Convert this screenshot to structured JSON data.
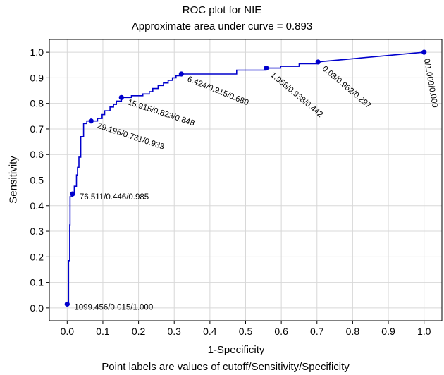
{
  "chart_data": {
    "type": "line",
    "title": "ROC plot for NIE",
    "subtitle": "Approximate area under curve = 0.893",
    "xlabel": "1-Specificity",
    "ylabel": "Sensitivity",
    "footnote": "Point labels are values of cutoff/Sensitivity/Specificity",
    "xlim": [
      -0.05,
      1.05
    ],
    "ylim": [
      -0.05,
      1.05
    ],
    "xticks": [
      "0.0",
      "0.1",
      "0.2",
      "0.3",
      "0.4",
      "0.5",
      "0.6",
      "0.7",
      "0.8",
      "0.9",
      "1.0"
    ],
    "yticks": [
      "0.0",
      "0.1",
      "0.2",
      "0.3",
      "0.4",
      "0.5",
      "0.6",
      "0.7",
      "0.8",
      "0.9",
      "1.0"
    ],
    "grid": true,
    "line_color": "#0000cc",
    "curve": [
      [
        0.0,
        0.015
      ],
      [
        0.004,
        0.015
      ],
      [
        0.004,
        0.185
      ],
      [
        0.007,
        0.185
      ],
      [
        0.007,
        0.325
      ],
      [
        0.008,
        0.325
      ],
      [
        0.008,
        0.435
      ],
      [
        0.015,
        0.435
      ],
      [
        0.015,
        0.446
      ],
      [
        0.02,
        0.446
      ],
      [
        0.02,
        0.476
      ],
      [
        0.026,
        0.476
      ],
      [
        0.026,
        0.52
      ],
      [
        0.029,
        0.52
      ],
      [
        0.029,
        0.55
      ],
      [
        0.033,
        0.55
      ],
      [
        0.033,
        0.59
      ],
      [
        0.038,
        0.59
      ],
      [
        0.038,
        0.67
      ],
      [
        0.046,
        0.67
      ],
      [
        0.046,
        0.721
      ],
      [
        0.055,
        0.721
      ],
      [
        0.055,
        0.731
      ],
      [
        0.085,
        0.731
      ],
      [
        0.085,
        0.741
      ],
      [
        0.098,
        0.741
      ],
      [
        0.098,
        0.756
      ],
      [
        0.105,
        0.756
      ],
      [
        0.105,
        0.771
      ],
      [
        0.12,
        0.771
      ],
      [
        0.12,
        0.786
      ],
      [
        0.13,
        0.786
      ],
      [
        0.13,
        0.796
      ],
      [
        0.138,
        0.796
      ],
      [
        0.138,
        0.809
      ],
      [
        0.152,
        0.809
      ],
      [
        0.152,
        0.823
      ],
      [
        0.18,
        0.823
      ],
      [
        0.18,
        0.83
      ],
      [
        0.212,
        0.83
      ],
      [
        0.212,
        0.837
      ],
      [
        0.23,
        0.837
      ],
      [
        0.23,
        0.846
      ],
      [
        0.24,
        0.846
      ],
      [
        0.24,
        0.858
      ],
      [
        0.255,
        0.858
      ],
      [
        0.255,
        0.87
      ],
      [
        0.27,
        0.87
      ],
      [
        0.27,
        0.88
      ],
      [
        0.283,
        0.88
      ],
      [
        0.283,
        0.89
      ],
      [
        0.295,
        0.89
      ],
      [
        0.295,
        0.9
      ],
      [
        0.305,
        0.9
      ],
      [
        0.305,
        0.908
      ],
      [
        0.32,
        0.908
      ],
      [
        0.32,
        0.915
      ],
      [
        0.475,
        0.915
      ],
      [
        0.475,
        0.93
      ],
      [
        0.555,
        0.93
      ],
      [
        0.555,
        0.938
      ],
      [
        0.598,
        0.938
      ],
      [
        0.598,
        0.945
      ],
      [
        0.65,
        0.945
      ],
      [
        0.65,
        0.955
      ],
      [
        0.7,
        0.955
      ],
      [
        0.7,
        0.962
      ],
      [
        1.0,
        1.0
      ]
    ],
    "points": [
      {
        "x": 0.0,
        "y": 0.015,
        "label": "1099.456/0.015/1.000",
        "angle": 0
      },
      {
        "x": 0.015,
        "y": 0.446,
        "label": "76.511/0.446/0.985",
        "angle": 0
      },
      {
        "x": 0.067,
        "y": 0.731,
        "label": "29.196/0.731/0.933",
        "angle": 18
      },
      {
        "x": 0.152,
        "y": 0.823,
        "label": "15.915/0.823/0.848",
        "angle": 18
      },
      {
        "x": 0.32,
        "y": 0.915,
        "label": "6.424/0.915/0.680",
        "angle": 22
      },
      {
        "x": 0.558,
        "y": 0.938,
        "label": "1.956/0.938/0.442",
        "angle": 40
      },
      {
        "x": 0.703,
        "y": 0.962,
        "label": "0.03/0.962/0.297",
        "angle": 40
      },
      {
        "x": 1.0,
        "y": 1.0,
        "label": "0/1.000/0.000",
        "angle": 80
      }
    ]
  }
}
